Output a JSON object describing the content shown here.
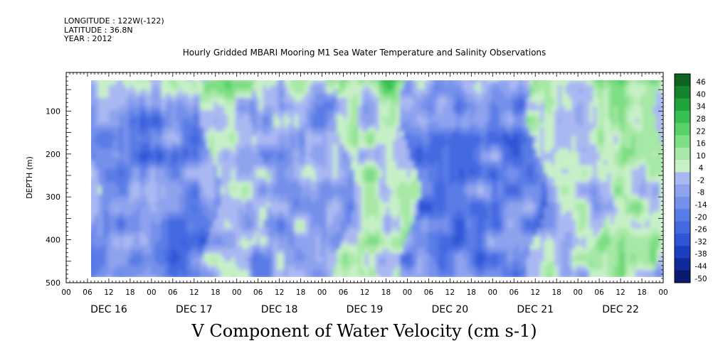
{
  "header": {
    "longitude": "LONGITUDE : 122W(-122)",
    "latitude": "LATITUDE : 36.8N",
    "year": "YEAR : 2012"
  },
  "chart_data": {
    "type": "heatmap",
    "title": "Hourly Gridded MBARI Mooring M1 Sea Water Temperature and Salinity Observations",
    "xlabel": "V Component of Water Velocity (cm s-1)",
    "ylabel": "DEPTH (m)",
    "ylim": [
      500,
      10
    ],
    "yticks": [
      100,
      200,
      300,
      400,
      500
    ],
    "hour_ticks": [
      "00",
      "06",
      "12",
      "18",
      "00",
      "06",
      "12",
      "18",
      "00",
      "06",
      "12",
      "18",
      "00",
      "06",
      "12",
      "18",
      "00",
      "06",
      "12",
      "18",
      "00",
      "06",
      "12",
      "18",
      "00",
      "06",
      "12",
      "18",
      "00"
    ],
    "day_labels": [
      "DEC 16",
      "DEC 17",
      "DEC 18",
      "DEC 19",
      "DEC 20",
      "DEC 21",
      "DEC 22"
    ],
    "colorbar": {
      "levels": [
        -50,
        -44,
        -38,
        -32,
        -26,
        -20,
        -14,
        -8,
        -2,
        4,
        10,
        16,
        22,
        28,
        34,
        40,
        46
      ],
      "tick_labels": [
        "46",
        "40",
        "34",
        "28",
        "22",
        "16",
        "10",
        "4",
        "-2",
        "-8",
        "-14",
        "-20",
        "-26",
        "-32",
        "-38",
        "-44",
        "-50"
      ],
      "colors": [
        "#0a1a6e",
        "#102a9a",
        "#1c3fbf",
        "#2e55d6",
        "#4469e0",
        "#5a7ce6",
        "#7490ea",
        "#8ea3ee",
        "#aab8f2",
        "#c8f0c8",
        "#a6e8a6",
        "#7ede84",
        "#58d268",
        "#36c050",
        "#21a33c",
        "#15852d",
        "#0c6420"
      ]
    },
    "data_start": "DEC 16 06",
    "days_covered": 7,
    "depth_range": [
      20,
      490
    ],
    "field_description_note": "",
    "pattern": {
      "positive_top_layer": true
    }
  }
}
